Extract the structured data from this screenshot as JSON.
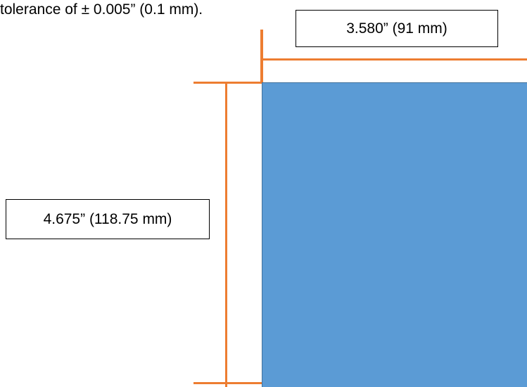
{
  "intro": {
    "text": "tolerance of ± 0.005” (0.1 mm)."
  },
  "dimensions": {
    "width_label": "3.580” (91 mm)",
    "height_label": "4.675” (118.75 mm)"
  },
  "colors": {
    "panel_fill": "#5b9bd5",
    "panel_border": "#41719c",
    "dimension_line": "#ed7d31",
    "label_border": "#000000",
    "text": "#000000"
  }
}
